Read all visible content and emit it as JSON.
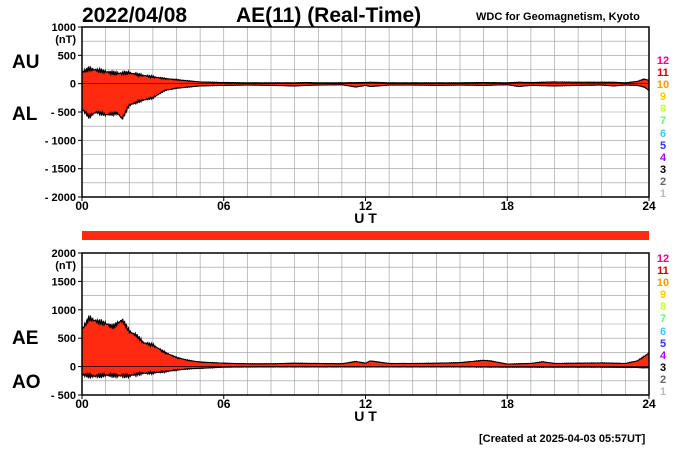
{
  "header": {
    "date": "2022/04/08",
    "title": "AE(11) (Real-Time)",
    "source": "WDC for Geomagnetism, Kyoto"
  },
  "footer": {
    "created": "[Created at 2025-04-03 05:57UT]"
  },
  "legend": {
    "items": [
      "12",
      "11",
      "10",
      "9",
      "8",
      "7",
      "6",
      "5",
      "4",
      "3",
      "2",
      "1"
    ],
    "colors": [
      "#ff0080",
      "#cc0000",
      "#ff9900",
      "#ffcc00",
      "#ccff33",
      "#66ff66",
      "#33ccff",
      "#3333ff",
      "#aa00ff",
      "#000000",
      "#666666",
      "#bbbbbb"
    ]
  },
  "colors": {
    "fill": "#ff2a10",
    "bar": "#ff2a10",
    "grid": "#999999"
  },
  "chart_data": [
    {
      "type": "area",
      "panel_labels": [
        "AU",
        "AL"
      ],
      "series": [
        {
          "name": "AU",
          "x": [
            0,
            0.3,
            0.6,
            1,
            1.5,
            2,
            2.5,
            3,
            3.5,
            4,
            4.5,
            5,
            6,
            7,
            8,
            9,
            9.5,
            10,
            11,
            12,
            12.2,
            13,
            14,
            15,
            16,
            17,
            18,
            18.5,
            19,
            20,
            21,
            22,
            22.5,
            23,
            23.5,
            23.8,
            24
          ],
          "y": [
            200,
            260,
            240,
            210,
            180,
            190,
            150,
            120,
            90,
            70,
            50,
            30,
            20,
            15,
            15,
            15,
            20,
            15,
            15,
            20,
            25,
            15,
            15,
            15,
            15,
            20,
            15,
            25,
            20,
            30,
            25,
            25,
            25,
            15,
            40,
            80,
            60
          ]
        },
        {
          "name": "AL",
          "x": [
            0,
            0.3,
            0.6,
            1,
            1.5,
            1.7,
            2,
            2.5,
            3,
            3.5,
            4,
            4.5,
            5,
            6,
            7,
            8,
            9,
            9.5,
            10,
            11,
            11.6,
            12,
            12.2,
            13,
            14,
            15,
            16,
            17,
            18,
            18.5,
            19,
            20,
            21,
            22,
            22.5,
            23,
            23.5,
            23.8,
            24
          ],
          "y": [
            -450,
            -580,
            -500,
            -550,
            -520,
            -620,
            -380,
            -300,
            -250,
            -120,
            -80,
            -60,
            -40,
            -30,
            -25,
            -30,
            -40,
            -30,
            -25,
            -20,
            -60,
            -30,
            -50,
            -25,
            -25,
            -30,
            -25,
            -30,
            -20,
            -50,
            -30,
            -40,
            -30,
            -25,
            -40,
            -25,
            -30,
            -60,
            -120
          ]
        }
      ],
      "xlabel": "U T",
      "ylabel": "(nT)",
      "xlim": [
        0,
        24
      ],
      "ylim": [
        -2000,
        1000
      ],
      "xticks": [
        0,
        6,
        12,
        18,
        24
      ],
      "xtick_labels": [
        "00",
        "06",
        "12",
        "18",
        "24"
      ],
      "yticks": [
        1000,
        500,
        0,
        -500,
        -1000,
        -1500,
        -2000
      ],
      "ytick_labels": [
        "1000",
        "500",
        "0",
        "- 500",
        "- 1000",
        "- 1500",
        "- 2000"
      ],
      "grid": true
    },
    {
      "type": "area",
      "panel_labels": [
        "AE",
        "AO"
      ],
      "series": [
        {
          "name": "AE",
          "x": [
            0,
            0.3,
            0.6,
            1,
            1.3,
            1.7,
            2,
            2.3,
            2.6,
            3,
            3.5,
            4,
            4.5,
            5,
            6,
            7,
            8,
            9,
            10,
            11,
            11.6,
            12,
            12.2,
            13,
            14,
            15,
            16,
            17,
            17.3,
            18,
            19,
            19.5,
            20,
            21,
            22,
            23,
            23.5,
            23.8,
            24
          ],
          "y": [
            650,
            850,
            800,
            760,
            700,
            820,
            620,
            550,
            420,
            380,
            250,
            160,
            110,
            80,
            60,
            50,
            50,
            60,
            55,
            50,
            90,
            60,
            100,
            55,
            55,
            60,
            70,
            110,
            100,
            45,
            55,
            85,
            55,
            60,
            65,
            55,
            100,
            180,
            240
          ]
        },
        {
          "name": "AO",
          "x": [
            0,
            0.5,
            1,
            1.5,
            2,
            2.5,
            3,
            3.5,
            4,
            4.5,
            5,
            6,
            8,
            10,
            12,
            14,
            16,
            18,
            20,
            22,
            23.5,
            24
          ],
          "y": [
            -140,
            -170,
            -150,
            -160,
            -160,
            -120,
            -110,
            -90,
            -60,
            -40,
            -30,
            -10,
            -5,
            -5,
            -5,
            -5,
            -5,
            -10,
            -10,
            -10,
            -15,
            -20
          ]
        }
      ],
      "xlabel": "U T",
      "ylabel": "(nT)",
      "xlim": [
        0,
        24
      ],
      "ylim": [
        -500,
        2000
      ],
      "xticks": [
        0,
        6,
        12,
        18,
        24
      ],
      "xtick_labels": [
        "00",
        "06",
        "12",
        "18",
        "24"
      ],
      "yticks": [
        2000,
        1500,
        1000,
        500,
        0,
        -500
      ],
      "ytick_labels": [
        "2000",
        "1500",
        "1000",
        "500",
        "0",
        "- 500"
      ],
      "grid": true
    }
  ]
}
